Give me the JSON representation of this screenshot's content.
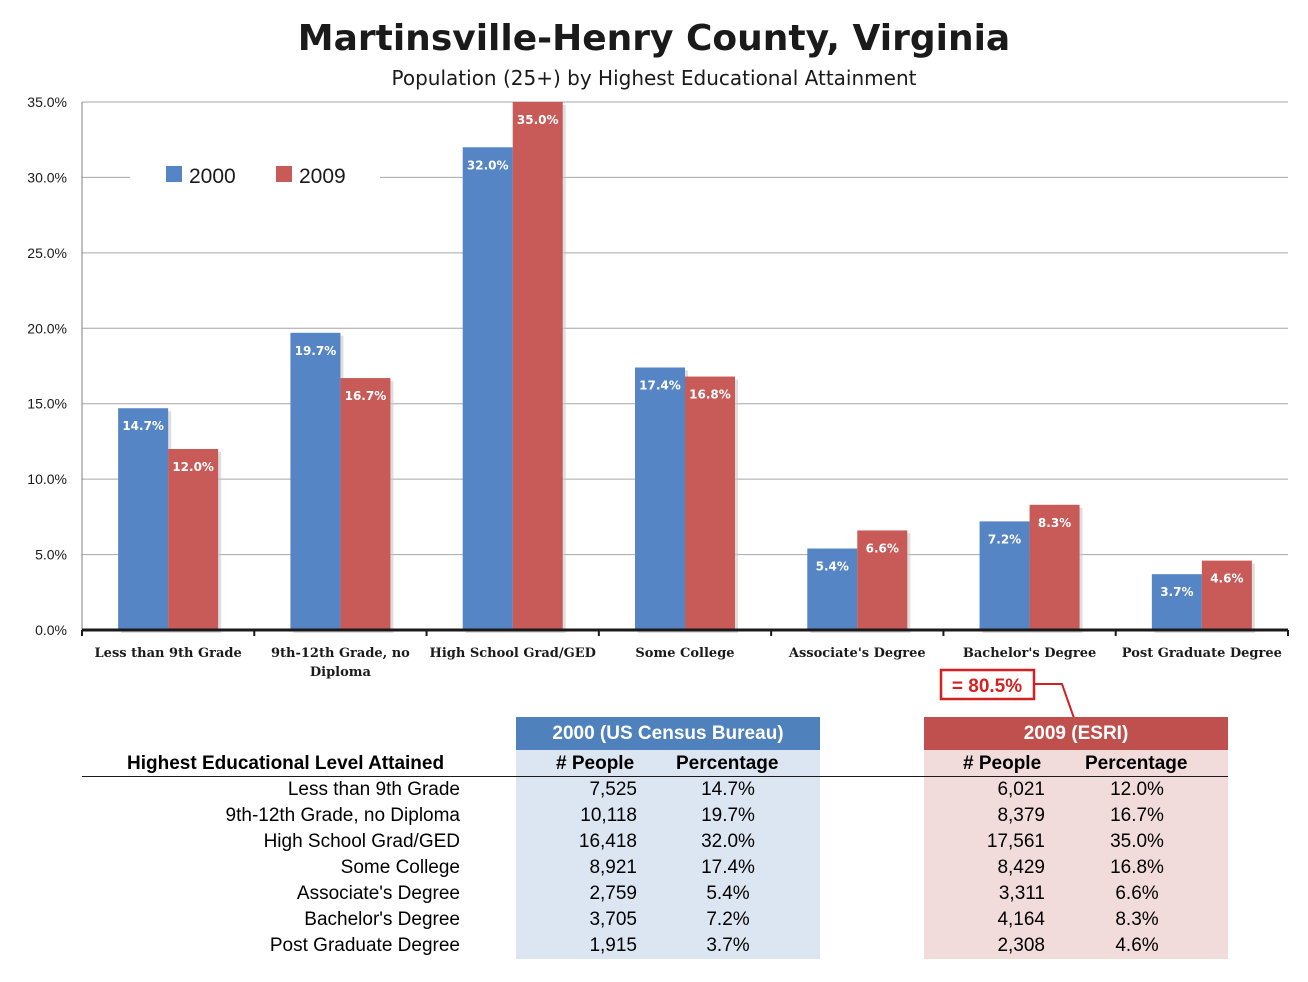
{
  "chart_data": {
    "type": "bar",
    "title": "Martinsville-Henry County, Virginia",
    "subtitle": "Population (25+) by Highest Educational Attainment",
    "categories": [
      "Less than 9th Grade",
      "9th-12th Grade, no Diploma",
      "High School Grad/GED",
      "Some College",
      "Associate's Degree",
      "Bachelor's Degree",
      "Post Graduate Degree"
    ],
    "series": [
      {
        "name": "2000",
        "color": "#5585c5",
        "values": [
          14.7,
          19.7,
          32.0,
          17.4,
          5.4,
          7.2,
          3.7
        ]
      },
      {
        "name": "2009",
        "color": "#c85a57",
        "values": [
          12.0,
          16.7,
          35.0,
          16.8,
          6.6,
          8.3,
          4.6
        ]
      }
    ],
    "ylim": [
      0,
      35
    ],
    "yticks": [
      "0.0%",
      "5.0%",
      "10.0%",
      "15.0%",
      "20.0%",
      "25.0%",
      "30.0%",
      "35.0%"
    ],
    "grid": true,
    "legend_position": "top-left"
  },
  "callout": {
    "text": "= 80.5%",
    "color": "#d42020"
  },
  "table": {
    "row_header": "Highest Educational Level Attained",
    "group_2000": {
      "title": "2000 (US Census Bureau)",
      "col_people": "# People",
      "col_pct": "Percentage",
      "header_color": "#4f81bd",
      "fill_color": "#dce6f2"
    },
    "group_2009": {
      "title": "2009 (ESRI)",
      "col_people": "# People",
      "col_pct": "Percentage",
      "header_color": "#c0504d",
      "fill_color": "#f2dcdb"
    },
    "rows": [
      {
        "label": "Less than 9th Grade",
        "p2000": "7,525",
        "pct2000": "14.7%",
        "p2009": "6,021",
        "pct2009": "12.0%"
      },
      {
        "label": "9th-12th Grade, no Diploma",
        "p2000": "10,118",
        "pct2000": "19.7%",
        "p2009": "8,379",
        "pct2009": "16.7%"
      },
      {
        "label": "High School Grad/GED",
        "p2000": "16,418",
        "pct2000": "32.0%",
        "p2009": "17,561",
        "pct2009": "35.0%"
      },
      {
        "label": "Some College",
        "p2000": "8,921",
        "pct2000": "17.4%",
        "p2009": "8,429",
        "pct2009": "16.8%"
      },
      {
        "label": "Associate's Degree",
        "p2000": "2,759",
        "pct2000": "5.4%",
        "p2009": "3,311",
        "pct2009": "6.6%"
      },
      {
        "label": "Bachelor's Degree",
        "p2000": "3,705",
        "pct2000": "7.2%",
        "p2009": "4,164",
        "pct2009": "8.3%"
      },
      {
        "label": "Post Graduate Degree",
        "p2000": "1,915",
        "pct2000": "3.7%",
        "p2009": "2,308",
        "pct2009": "4.6%"
      }
    ]
  }
}
